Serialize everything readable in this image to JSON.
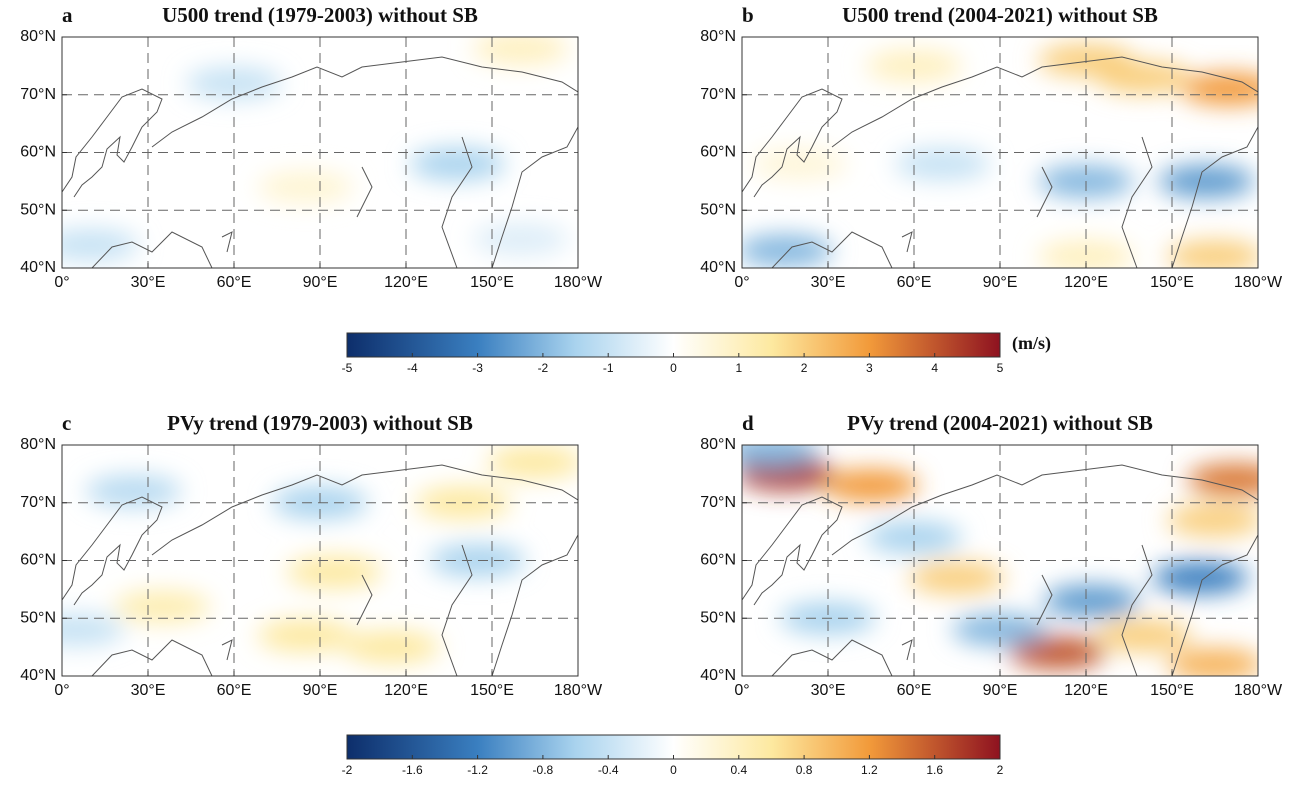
{
  "chart_data": [
    {
      "type": "map",
      "letter": "a",
      "title": "U500 trend (1979-2003) without SB",
      "xlim": [
        0,
        180
      ],
      "ylim": [
        40,
        80
      ],
      "xticks": [
        {
          "value": 0,
          "label": "0°"
        },
        {
          "value": 30,
          "label": "30°E"
        },
        {
          "value": 60,
          "label": "60°E"
        },
        {
          "value": 90,
          "label": "90°E"
        },
        {
          "value": 120,
          "label": "120°E"
        },
        {
          "value": 150,
          "label": "150°E"
        },
        {
          "value": 180,
          "label": "180°W"
        }
      ],
      "yticks": [
        {
          "value": 40,
          "label": "40°N"
        },
        {
          "value": 50,
          "label": "50°N"
        },
        {
          "value": 60,
          "label": "60°N"
        },
        {
          "value": 70,
          "label": "70°N"
        },
        {
          "value": 80,
          "label": "80°N"
        }
      ],
      "grid": true,
      "blobs": [
        {
          "lon": 60,
          "lat": 72,
          "value": -1
        },
        {
          "lon": 138,
          "lat": 58,
          "value": -1.5
        },
        {
          "lon": 10,
          "lat": 44,
          "value": -1
        },
        {
          "lon": 160,
          "lat": 78,
          "value": 1
        },
        {
          "lon": 85,
          "lat": 54,
          "value": 0.7
        },
        {
          "lon": 160,
          "lat": 45,
          "value": -0.6
        }
      ]
    },
    {
      "type": "map",
      "letter": "b",
      "title": "U500 trend (2004-2021) without SB",
      "xlim": [
        0,
        180
      ],
      "ylim": [
        40,
        80
      ],
      "xticks": [
        {
          "value": 0,
          "label": "0°"
        },
        {
          "value": 30,
          "label": "30°E"
        },
        {
          "value": 60,
          "label": "60°E"
        },
        {
          "value": 90,
          "label": "90°E"
        },
        {
          "value": 120,
          "label": "120°E"
        },
        {
          "value": 150,
          "label": "150°E"
        },
        {
          "value": 180,
          "label": "180°W"
        }
      ],
      "yticks": [
        {
          "value": 40,
          "label": "40°N"
        },
        {
          "value": 50,
          "label": "50°N"
        },
        {
          "value": 60,
          "label": "60°N"
        },
        {
          "value": 70,
          "label": "70°N"
        },
        {
          "value": 80,
          "label": "80°N"
        }
      ],
      "grid": true,
      "blobs": [
        {
          "lon": 120,
          "lat": 76,
          "value": 2
        },
        {
          "lon": 170,
          "lat": 71,
          "value": 3
        },
        {
          "lon": 140,
          "lat": 73,
          "value": 2
        },
        {
          "lon": 60,
          "lat": 75,
          "value": 1
        },
        {
          "lon": 120,
          "lat": 55,
          "value": -2
        },
        {
          "lon": 162,
          "lat": 55,
          "value": -2.5
        },
        {
          "lon": 15,
          "lat": 43,
          "value": -2
        },
        {
          "lon": 165,
          "lat": 42,
          "value": 2
        },
        {
          "lon": 120,
          "lat": 42,
          "value": 1
        },
        {
          "lon": 70,
          "lat": 58,
          "value": -1
        },
        {
          "lon": 20,
          "lat": 58,
          "value": 0.6
        }
      ]
    },
    {
      "type": "colorbar",
      "unit": "(m/s)",
      "clim": [
        -5,
        5
      ],
      "ticks": [
        -5,
        -4,
        -3,
        -2,
        -1,
        0,
        1,
        2,
        3,
        4,
        5
      ]
    },
    {
      "type": "map",
      "letter": "c",
      "title": "PVy trend (1979-2003) without SB",
      "xlim": [
        0,
        180
      ],
      "ylim": [
        40,
        80
      ],
      "xticks": [
        {
          "value": 0,
          "label": "0°"
        },
        {
          "value": 30,
          "label": "30°E"
        },
        {
          "value": 60,
          "label": "60°E"
        },
        {
          "value": 90,
          "label": "90°E"
        },
        {
          "value": 120,
          "label": "120°E"
        },
        {
          "value": 150,
          "label": "150°E"
        },
        {
          "value": 180,
          "label": "180°W"
        }
      ],
      "yticks": [
        {
          "value": 40,
          "label": "40°N"
        },
        {
          "value": 50,
          "label": "50°N"
        },
        {
          "value": 60,
          "label": "60°N"
        },
        {
          "value": 70,
          "label": "70°N"
        },
        {
          "value": 80,
          "label": "80°N"
        }
      ],
      "grid": true,
      "blobs": [
        {
          "lon": 90,
          "lat": 70,
          "value": -0.6
        },
        {
          "lon": 140,
          "lat": 70,
          "value": 0.6
        },
        {
          "lon": 165,
          "lat": 77,
          "value": 0.6
        },
        {
          "lon": 145,
          "lat": 60,
          "value": -0.6
        },
        {
          "lon": 95,
          "lat": 58,
          "value": 0.6
        },
        {
          "lon": 35,
          "lat": 52,
          "value": 0.5
        },
        {
          "lon": 85,
          "lat": 47,
          "value": 0.6
        },
        {
          "lon": 115,
          "lat": 45,
          "value": 0.6
        },
        {
          "lon": 25,
          "lat": 72,
          "value": -0.5
        },
        {
          "lon": 5,
          "lat": 48,
          "value": -0.4
        }
      ]
    },
    {
      "type": "map",
      "letter": "d",
      "title": "PVy trend (2004-2021) without SB",
      "xlim": [
        0,
        180
      ],
      "ylim": [
        40,
        80
      ],
      "xticks": [
        {
          "value": 0,
          "label": "0°"
        },
        {
          "value": 30,
          "label": "30°E"
        },
        {
          "value": 60,
          "label": "60°E"
        },
        {
          "value": 90,
          "label": "90°E"
        },
        {
          "value": 120,
          "label": "120°E"
        },
        {
          "value": 150,
          "label": "150°E"
        },
        {
          "value": 180,
          "label": "180°W"
        }
      ],
      "yticks": [
        {
          "value": 40,
          "label": "40°N"
        },
        {
          "value": 50,
          "label": "50°N"
        },
        {
          "value": 60,
          "label": "60°N"
        },
        {
          "value": 70,
          "label": "70°N"
        },
        {
          "value": 80,
          "label": "80°N"
        }
      ],
      "grid": true,
      "blobs": [
        {
          "lon": 15,
          "lat": 75,
          "value": 1.8
        },
        {
          "lon": 45,
          "lat": 73,
          "value": 1.2
        },
        {
          "lon": 172,
          "lat": 74,
          "value": 1.4
        },
        {
          "lon": 110,
          "lat": 44,
          "value": 1.6
        },
        {
          "lon": 160,
          "lat": 57,
          "value": -1.2
        },
        {
          "lon": 122,
          "lat": 53,
          "value": -1
        },
        {
          "lon": 10,
          "lat": 79,
          "value": -0.8
        },
        {
          "lon": 165,
          "lat": 67,
          "value": 0.8
        },
        {
          "lon": 75,
          "lat": 57,
          "value": 0.8
        },
        {
          "lon": 165,
          "lat": 42,
          "value": 1
        },
        {
          "lon": 60,
          "lat": 64,
          "value": -0.6
        },
        {
          "lon": 90,
          "lat": 48,
          "value": -0.8
        },
        {
          "lon": 140,
          "lat": 47,
          "value": 0.8
        },
        {
          "lon": 30,
          "lat": 50,
          "value": -0.6
        }
      ]
    },
    {
      "type": "colorbar",
      "clim": [
        -2,
        2
      ],
      "ticks": [
        -2,
        -1.6,
        -1.2,
        -0.8,
        -0.4,
        0,
        0.4,
        0.8,
        1.2,
        1.6,
        2
      ]
    }
  ]
}
